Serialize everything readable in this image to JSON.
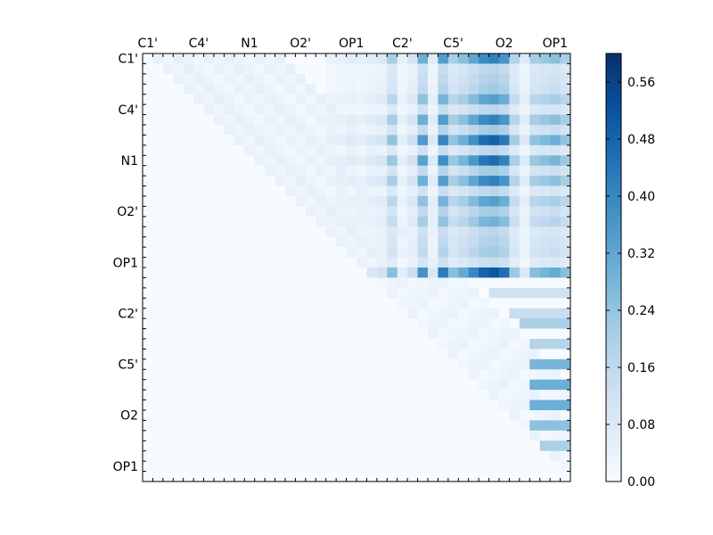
{
  "chart_data": {
    "type": "heatmap",
    "title": "",
    "xlabel": "",
    "ylabel": "",
    "matrix_size": 42,
    "upper_triangular": true,
    "tick_labels": [
      "C1'",
      "C4'",
      "N1",
      "O2'",
      "OP1",
      "C2'",
      "C5'",
      "O2",
      "OP1"
    ],
    "x_tick_labels": [
      "C1'",
      "C4'",
      "N1",
      "O2'",
      "OP1",
      "C2'",
      "C5'",
      "O2",
      "OP1"
    ],
    "y_tick_labels": [
      "C1'",
      "C4'",
      "N1",
      "O2'",
      "OP1",
      "C2'",
      "C5'",
      "O2",
      "OP1"
    ],
    "tick_indices": [
      0,
      5,
      10,
      15,
      20,
      25,
      30,
      35,
      40
    ],
    "colorbar": {
      "vmin": 0.0,
      "vmax": 0.6,
      "ticks": [
        "0.00",
        "0.08",
        "0.16",
        "0.24",
        "0.32",
        "0.40",
        "0.48",
        "0.56"
      ],
      "tick_values": [
        0.0,
        0.08,
        0.16,
        0.24,
        0.32,
        0.4,
        0.48,
        0.56
      ],
      "colormap": "Blues",
      "colormap_stops": [
        "#f7fbff",
        "#deebf7",
        "#c6dbef",
        "#9ecae1",
        "#6baed6",
        "#4292c6",
        "#2171b5",
        "#08519c",
        "#08306b"
      ]
    },
    "strong_rows": [
      {
        "row": 0,
        "scale": 0.85
      },
      {
        "row": 4,
        "scale": 0.7
      },
      {
        "row": 6,
        "scale": 0.85
      },
      {
        "row": 8,
        "scale": 1.0
      },
      {
        "row": 10,
        "scale": 0.95
      },
      {
        "row": 12,
        "scale": 0.85
      },
      {
        "row": 14,
        "scale": 0.7
      },
      {
        "row": 16,
        "scale": 0.6
      },
      {
        "row": 19,
        "scale": 0.45
      },
      {
        "row": 21,
        "scale": 1.05
      }
    ],
    "strong_columns": [
      {
        "col": 24,
        "weight": 0.45
      },
      {
        "col": 27,
        "weight": 0.65
      },
      {
        "col": 29,
        "weight": 0.75
      },
      {
        "col": 30,
        "weight": 0.45
      },
      {
        "col": 31,
        "weight": 0.55
      },
      {
        "col": 32,
        "weight": 0.7
      },
      {
        "col": 33,
        "weight": 0.85
      },
      {
        "col": 34,
        "weight": 0.9
      },
      {
        "col": 35,
        "weight": 0.8
      },
      {
        "col": 36,
        "weight": 0.4
      },
      {
        "col": 38,
        "weight": 0.45
      },
      {
        "col": 39,
        "weight": 0.5
      },
      {
        "col": 40,
        "weight": 0.55
      },
      {
        "col": 41,
        "weight": 0.45
      }
    ],
    "weak_columns": [
      {
        "col": 18,
        "weight": 0.12
      },
      {
        "col": 19,
        "weight": 0.15
      },
      {
        "col": 20,
        "weight": 0.18
      },
      {
        "col": 21,
        "weight": 0.15
      },
      {
        "col": 22,
        "weight": 0.2
      },
      {
        "col": 23,
        "weight": 0.25
      },
      {
        "col": 25,
        "weight": 0.15
      },
      {
        "col": 26,
        "weight": 0.3
      },
      {
        "col": 28,
        "weight": 0.2
      },
      {
        "col": 37,
        "weight": 0.2
      }
    ],
    "lower_block": [
      {
        "row": 23,
        "cols": [
          34,
          35,
          36,
          37,
          38,
          39,
          40,
          41
        ],
        "value": 0.12
      },
      {
        "row": 25,
        "cols": [
          36,
          37,
          38,
          39,
          40,
          41
        ],
        "value": 0.14
      },
      {
        "row": 26,
        "cols": [
          37,
          38,
          39,
          40,
          41
        ],
        "value": 0.2
      },
      {
        "row": 28,
        "cols": [
          38,
          39,
          40,
          41
        ],
        "value": 0.18
      },
      {
        "row": 30,
        "cols": [
          38,
          39,
          40,
          41
        ],
        "value": 0.28
      },
      {
        "row": 32,
        "cols": [
          38,
          39,
          40,
          41
        ],
        "value": 0.3
      },
      {
        "row": 34,
        "cols": [
          38,
          39,
          40,
          41
        ],
        "value": 0.3
      },
      {
        "row": 36,
        "cols": [
          38,
          39,
          40,
          41
        ],
        "value": 0.25
      },
      {
        "row": 38,
        "cols": [
          39,
          40,
          41
        ],
        "value": 0.2
      }
    ]
  }
}
